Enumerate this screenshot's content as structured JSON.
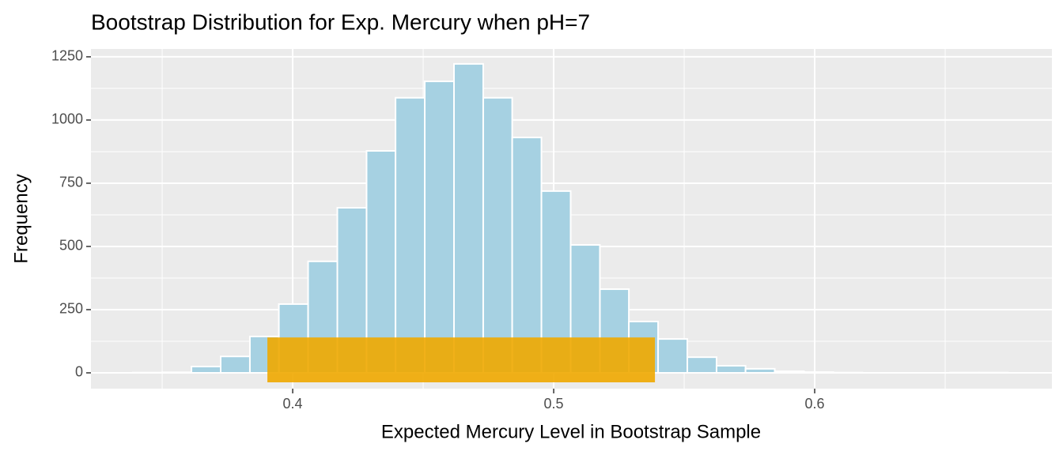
{
  "chart_data": {
    "type": "histogram",
    "title": "Bootstrap Distribution for Exp. Mercury when pH=7",
    "x_label": "Expected Mercury Level in Bootstrap Sample",
    "y_label": "Frequency",
    "bins": [
      0.3388,
      0.35,
      0.3612,
      0.3724,
      0.3836,
      0.3947,
      0.4059,
      0.4171,
      0.4283,
      0.4394,
      0.4506,
      0.4618,
      0.473,
      0.4841,
      0.4953,
      0.5065,
      0.5177,
      0.5288,
      0.54,
      0.5512,
      0.5624,
      0.5735,
      0.5847,
      0.5959,
      0.6071,
      0.6182,
      0.6294,
      0.6406,
      0.6518,
      0.6629,
      0.6741
    ],
    "values": [
      1,
      2,
      25,
      65,
      144,
      272,
      441,
      653,
      878,
      1088,
      1153,
      1222,
      1088,
      931,
      719,
      506,
      331,
      203,
      134,
      62,
      28,
      16,
      6,
      3,
      1,
      0,
      0,
      0,
      1,
      1
    ],
    "color": "#a6d1e2",
    "edge_color": "#ffffff",
    "interval": {
      "xmin": 0.3903,
      "xmax": 0.5388,
      "ymin": -37.5,
      "ymax": 140,
      "color": "#f0a800"
    },
    "xlim": [
      0.3227,
      0.6909
    ],
    "ylim": [
      -62.5,
      1281
    ],
    "xticks": [
      0.4,
      0.5,
      0.6
    ],
    "yticks": [
      0,
      250,
      500,
      750,
      1000,
      1250
    ],
    "grid": true
  }
}
